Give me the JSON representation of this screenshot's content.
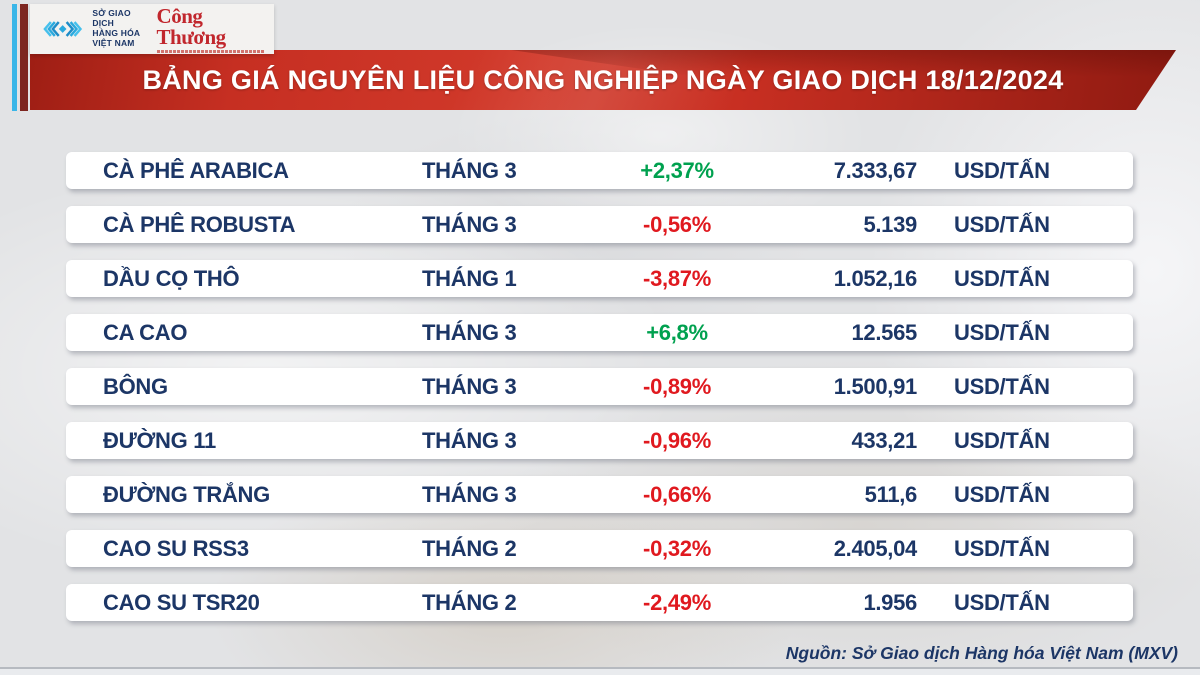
{
  "colors": {
    "navy": "#1c3666",
    "up": "#00a14f",
    "down": "#e0191f",
    "banner_red": "#c62f22",
    "accent_cyan": "#3ab6e8",
    "accent_maroon": "#7d2620",
    "congthuong_red": "#c1272d"
  },
  "header": {
    "mxv": {
      "line1": "SỞ GIAO DỊCH",
      "line2": "HÀNG HÓA",
      "line3": "VIỆT NAM"
    },
    "congthuong": {
      "text": "Công Thương"
    }
  },
  "banner": {
    "title": "BẢNG GIÁ NGUYÊN LIỆU CÔNG NGHIỆP NGÀY GIAO DỊCH 18/12/2024"
  },
  "table": {
    "rows": [
      {
        "name": "CÀ PHÊ ARABICA",
        "month": "THÁNG 3",
        "change": "+2,37%",
        "direction": "up",
        "price": "7.333,67",
        "unit": "USD/TẤN"
      },
      {
        "name": "CÀ PHÊ ROBUSTA",
        "month": "THÁNG 3",
        "change": "-0,56%",
        "direction": "down",
        "price": "5.139",
        "unit": "USD/TẤN"
      },
      {
        "name": "DẦU CỌ THÔ",
        "month": "THÁNG 1",
        "change": "-3,87%",
        "direction": "down",
        "price": "1.052,16",
        "unit": "USD/TẤN"
      },
      {
        "name": "CA CAO",
        "month": "THÁNG 3",
        "change": "+6,8%",
        "direction": "up",
        "price": "12.565",
        "unit": "USD/TẤN"
      },
      {
        "name": "BÔNG",
        "month": "THÁNG 3",
        "change": "-0,89%",
        "direction": "down",
        "price": "1.500,91",
        "unit": "USD/TẤN"
      },
      {
        "name": "ĐƯỜNG 11",
        "month": "THÁNG 3",
        "change": "-0,96%",
        "direction": "down",
        "price": "433,21",
        "unit": "USD/TẤN"
      },
      {
        "name": "ĐƯỜNG TRẮNG",
        "month": "THÁNG 3",
        "change": "-0,66%",
        "direction": "down",
        "price": "511,6",
        "unit": "USD/TẤN"
      },
      {
        "name": "CAO SU RSS3",
        "month": "THÁNG 2",
        "change": "-0,32%",
        "direction": "down",
        "price": "2.405,04",
        "unit": "USD/TẤN"
      },
      {
        "name": "CAO SU TSR20",
        "month": "THÁNG 2",
        "change": "-2,49%",
        "direction": "down",
        "price": "1.956",
        "unit": "USD/TẤN"
      }
    ]
  },
  "footer": {
    "source": "Nguồn: Sở Giao dịch Hàng hóa Việt Nam (MXV)"
  },
  "chart_data": {
    "type": "table",
    "title": "BẢNG GIÁ NGUYÊN LIỆU CÔNG NGHIỆP NGÀY GIAO DỊCH 18/12/2024",
    "columns": [
      "commodity",
      "contract_month",
      "change_pct",
      "price",
      "unit"
    ],
    "rows": [
      {
        "commodity": "CÀ PHÊ ARABICA",
        "contract_month": "THÁNG 3",
        "change_pct": 2.37,
        "price": 7333.67,
        "unit": "USD/TẤN"
      },
      {
        "commodity": "CÀ PHÊ ROBUSTA",
        "contract_month": "THÁNG 3",
        "change_pct": -0.56,
        "price": 5139,
        "unit": "USD/TẤN"
      },
      {
        "commodity": "DẦU CỌ THÔ",
        "contract_month": "THÁNG 1",
        "change_pct": -3.87,
        "price": 1052.16,
        "unit": "USD/TẤN"
      },
      {
        "commodity": "CA CAO",
        "contract_month": "THÁNG 3",
        "change_pct": 6.8,
        "price": 12565,
        "unit": "USD/TẤN"
      },
      {
        "commodity": "BÔNG",
        "contract_month": "THÁNG 3",
        "change_pct": -0.89,
        "price": 1500.91,
        "unit": "USD/TẤN"
      },
      {
        "commodity": "ĐƯỜNG 11",
        "contract_month": "THÁNG 3",
        "change_pct": -0.96,
        "price": 433.21,
        "unit": "USD/TẤN"
      },
      {
        "commodity": "ĐƯỜNG TRẮNG",
        "contract_month": "THÁNG 3",
        "change_pct": -0.66,
        "price": 511.6,
        "unit": "USD/TẤN"
      },
      {
        "commodity": "CAO SU RSS3",
        "contract_month": "THÁNG 2",
        "change_pct": -0.32,
        "price": 2405.04,
        "unit": "USD/TẤN"
      },
      {
        "commodity": "CAO SU TSR20",
        "contract_month": "THÁNG 2",
        "change_pct": -2.49,
        "price": 1956,
        "unit": "USD/TẤN"
      }
    ],
    "source": "Nguồn: Sở Giao dịch Hàng hóa Việt Nam (MXV)"
  }
}
